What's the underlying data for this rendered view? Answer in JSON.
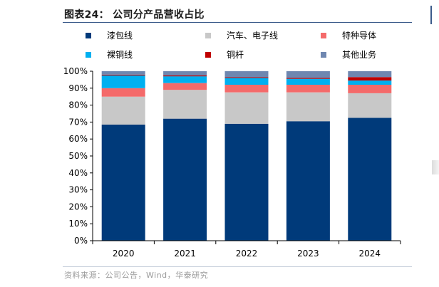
{
  "header": {
    "title": "图表24：  公司分产品营收占比"
  },
  "footer": {
    "source": "资料来源：公司公告，Wind，华泰研究"
  },
  "chart_data": {
    "type": "bar",
    "stacked": true,
    "categories": [
      "2020",
      "2021",
      "2022",
      "2023",
      "2024"
    ],
    "series": [
      {
        "name": "漆包线",
        "color": "#003A7A",
        "values": [
          68.5,
          72.0,
          69.0,
          70.5,
          72.5
        ]
      },
      {
        "name": "汽车、电子线",
        "color": "#C8C8C8",
        "values": [
          16.5,
          17.0,
          18.5,
          17.0,
          14.5
        ]
      },
      {
        "name": "特种导体",
        "color": "#F46A6A",
        "values": [
          5.0,
          4.0,
          4.5,
          4.5,
          5.0
        ]
      },
      {
        "name": "裸铜线",
        "color": "#00B0F0",
        "values": [
          7.5,
          4.0,
          4.0,
          3.5,
          2.5
        ]
      },
      {
        "name": "铜杆",
        "color": "#C00000",
        "values": [
          0.5,
          0.5,
          0.5,
          0.5,
          2.0
        ]
      },
      {
        "name": "其他业务",
        "color": "#6F87B0",
        "values": [
          2.0,
          2.5,
          3.5,
          4.0,
          3.5
        ]
      }
    ],
    "y_ticks": [
      "0%",
      "10%",
      "20%",
      "30%",
      "40%",
      "50%",
      "60%",
      "70%",
      "80%",
      "90%",
      "100%"
    ],
    "ylim": [
      0,
      100
    ],
    "grid": false,
    "legend_position": "top"
  }
}
